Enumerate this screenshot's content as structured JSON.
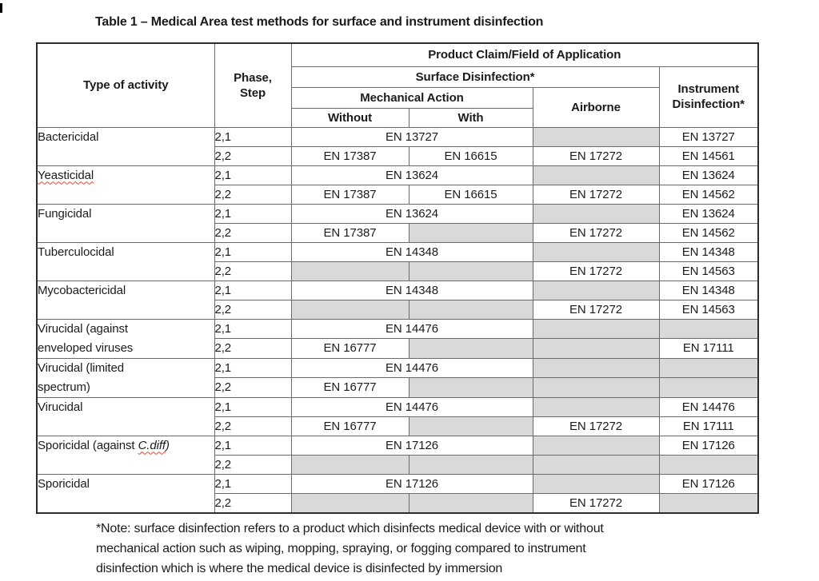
{
  "title": "Table 1 – Medical Area test methods for surface and instrument disinfection",
  "table": {
    "header": {
      "type_of_activity": "Type of activity",
      "phase_step_line1": "Phase,",
      "phase_step_line2": "Step",
      "product_claim": "Product Claim/Field of Application",
      "surface_disinfection": "Surface Disinfection*",
      "mechanical_action": "Mechanical Action",
      "without": "Without",
      "with": "With",
      "airborne": "Airborne",
      "instrument_disinfection": "Instrument Disinfection*"
    },
    "groups": [
      {
        "activity": [
          [
            {
              "text": "Bactericidal"
            }
          ]
        ],
        "rows": [
          {
            "phase": "2,1",
            "cells": [
              {
                "text": "EN 13727",
                "colspan": 2
              },
              {
                "text": "",
                "shaded": true
              },
              {
                "text": "EN 13727"
              }
            ]
          },
          {
            "phase": "2,2",
            "cells": [
              {
                "text": "EN 17387"
              },
              {
                "text": "EN 16615"
              },
              {
                "text": "EN 17272"
              },
              {
                "text": "EN 14561"
              }
            ]
          }
        ]
      },
      {
        "activity": [
          [
            {
              "text": "Yeasticidal",
              "squiggle": true
            }
          ]
        ],
        "rows": [
          {
            "phase": "2,1",
            "cells": [
              {
                "text": "EN 13624",
                "colspan": 2
              },
              {
                "text": "",
                "shaded": true
              },
              {
                "text": "EN 13624"
              }
            ]
          },
          {
            "phase": "2,2",
            "cells": [
              {
                "text": "EN 17387"
              },
              {
                "text": "EN 16615"
              },
              {
                "text": "EN 17272"
              },
              {
                "text": "EN 14562"
              }
            ]
          }
        ]
      },
      {
        "activity": [
          [
            {
              "text": "Fungicidal"
            }
          ]
        ],
        "rows": [
          {
            "phase": "2,1",
            "cells": [
              {
                "text": "EN 13624",
                "colspan": 2
              },
              {
                "text": "",
                "shaded": true
              },
              {
                "text": "EN 13624"
              }
            ]
          },
          {
            "phase": "2,2",
            "cells": [
              {
                "text": "EN 17387"
              },
              {
                "text": "",
                "shaded": true
              },
              {
                "text": "EN 17272"
              },
              {
                "text": "EN 14562"
              }
            ]
          }
        ]
      },
      {
        "activity": [
          [
            {
              "text": "Tuberculocidal"
            }
          ]
        ],
        "rows": [
          {
            "phase": "2,1",
            "cells": [
              {
                "text": "EN 14348",
                "colspan": 2
              },
              {
                "text": "",
                "shaded": true
              },
              {
                "text": "EN 14348"
              }
            ]
          },
          {
            "phase": "2,2",
            "cells": [
              {
                "text": "",
                "shaded": true
              },
              {
                "text": "",
                "shaded": true
              },
              {
                "text": "EN 17272"
              },
              {
                "text": "EN 14563"
              }
            ]
          }
        ]
      },
      {
        "activity": [
          [
            {
              "text": "Mycobactericidal"
            }
          ]
        ],
        "rows": [
          {
            "phase": "2,1",
            "cells": [
              {
                "text": "EN 14348",
                "colspan": 2
              },
              {
                "text": "",
                "shaded": true
              },
              {
                "text": "EN 14348"
              }
            ]
          },
          {
            "phase": "2,2",
            "cells": [
              {
                "text": "",
                "shaded": true
              },
              {
                "text": "",
                "shaded": true
              },
              {
                "text": "EN 17272"
              },
              {
                "text": "EN 14563"
              }
            ]
          }
        ]
      },
      {
        "activity": [
          [
            {
              "text": "Virucidal (against"
            }
          ],
          [
            {
              "text": "enveloped viruses"
            }
          ]
        ],
        "rows": [
          {
            "phase": "2,1",
            "cells": [
              {
                "text": "EN 14476",
                "colspan": 2
              },
              {
                "text": "",
                "shaded": true
              },
              {
                "text": "",
                "shaded": true
              }
            ]
          },
          {
            "phase": "2,2",
            "cells": [
              {
                "text": "EN 16777"
              },
              {
                "text": "",
                "shaded": true
              },
              {
                "text": "",
                "shaded": true
              },
              {
                "text": "EN 17111"
              }
            ]
          }
        ]
      },
      {
        "activity": [
          [
            {
              "text": "Virucidal (limited"
            }
          ],
          [
            {
              "text": "spectrum)"
            }
          ]
        ],
        "rows": [
          {
            "phase": "2,1",
            "cells": [
              {
                "text": "EN 14476",
                "colspan": 2
              },
              {
                "text": "",
                "shaded": true
              },
              {
                "text": "",
                "shaded": true
              }
            ]
          },
          {
            "phase": "2,2",
            "cells": [
              {
                "text": "EN 16777"
              },
              {
                "text": "",
                "shaded": true
              },
              {
                "text": "",
                "shaded": true
              },
              {
                "text": "",
                "shaded": true
              }
            ]
          }
        ]
      },
      {
        "activity": [
          [
            {
              "text": "Virucidal"
            }
          ]
        ],
        "rows": [
          {
            "phase": "2,1",
            "cells": [
              {
                "text": "EN 14476",
                "colspan": 2
              },
              {
                "text": "",
                "shaded": true
              },
              {
                "text": "EN 14476"
              }
            ]
          },
          {
            "phase": "2,2",
            "cells": [
              {
                "text": "EN 16777"
              },
              {
                "text": "",
                "shaded": true
              },
              {
                "text": "EN 17272"
              },
              {
                "text": "EN 17111"
              }
            ]
          }
        ]
      },
      {
        "activity": [
          [
            {
              "text": "Sporicidal (against "
            },
            {
              "text": "C.diff",
              "italic": true,
              "squiggle": true
            },
            {
              "text": ")",
              "italic": true
            }
          ]
        ],
        "rows": [
          {
            "phase": "2,1",
            "cells": [
              {
                "text": "EN 17126",
                "colspan": 2
              },
              {
                "text": "",
                "shaded": true
              },
              {
                "text": "EN 17126"
              }
            ]
          },
          {
            "phase": "2,2",
            "cells": [
              {
                "text": "",
                "shaded": true
              },
              {
                "text": "",
                "shaded": true
              },
              {
                "text": "",
                "shaded": true
              },
              {
                "text": "",
                "shaded": true
              }
            ]
          }
        ]
      },
      {
        "activity": [
          [
            {
              "text": "Sporicidal"
            }
          ]
        ],
        "rows": [
          {
            "phase": "2,1",
            "cells": [
              {
                "text": "EN 17126",
                "colspan": 2
              },
              {
                "text": "",
                "shaded": true
              },
              {
                "text": "EN 17126"
              }
            ]
          },
          {
            "phase": "2,2",
            "cells": [
              {
                "text": "",
                "shaded": true
              },
              {
                "text": "",
                "shaded": true
              },
              {
                "text": "EN 17272"
              },
              {
                "text": "",
                "shaded": true
              }
            ]
          }
        ]
      }
    ]
  },
  "note_lines": [
    "*Note: surface disinfection refers to a product which disinfects medical device with or without",
    "mechanical action such as wiping, mopping, spraying, or fogging compared to instrument",
    "disinfection which is where the medical device is disinfected by immersion"
  ],
  "colors": {
    "shaded_cell": "#d9d9d9",
    "squiggle_red": "#ef4135",
    "border_inner": "#6a6a6a",
    "border_outer": "#2c2c2c"
  }
}
